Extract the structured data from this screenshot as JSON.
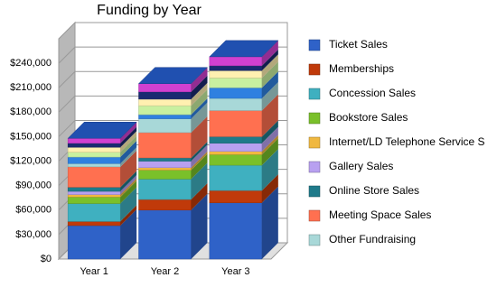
{
  "chart_data": {
    "type": "bar3d-stacked",
    "title": "Funding by Year",
    "categories": [
      "Year 1",
      "Year 2",
      "Year 3"
    ],
    "ylim": [
      0,
      270000
    ],
    "yticks": [
      {
        "value": 0,
        "label": "$0"
      },
      {
        "value": 30000,
        "label": "$30,000"
      },
      {
        "value": 60000,
        "label": "$60,000"
      },
      {
        "value": 90000,
        "label": "$90,000"
      },
      {
        "value": 120000,
        "label": "$120,000"
      },
      {
        "value": 150000,
        "label": "$150,000"
      },
      {
        "value": 180000,
        "label": "$180,000"
      },
      {
        "value": 210000,
        "label": "$210,000"
      },
      {
        "value": 240000,
        "label": "$240,000"
      }
    ],
    "grid": true,
    "series": [
      {
        "name": "Ticket Sales",
        "color": "#2f62c8",
        "values": [
          41000,
          60000,
          69000
        ]
      },
      {
        "name": "Memberships",
        "color": "#c03a0a",
        "values": [
          5000,
          13000,
          15000
        ]
      },
      {
        "name": "Concession Sales",
        "color": "#3fb0c0",
        "values": [
          22000,
          25000,
          31000
        ]
      },
      {
        "name": "Bookstore Sales",
        "color": "#7ac02a",
        "values": [
          8000,
          11000,
          13000
        ]
      },
      {
        "name": "Internet/LD Telephone Service S",
        "color": "#f0b840",
        "values": [
          3000,
          3000,
          4000
        ]
      },
      {
        "name": "Gallery Sales",
        "color": "#b8a0f0",
        "values": [
          4000,
          8000,
          10000
        ]
      },
      {
        "name": "Online Store Sales",
        "color": "#1f7a8a",
        "values": [
          5000,
          4000,
          8000
        ]
      },
      {
        "name": "Meeting Space Sales",
        "color": "#ff7050",
        "values": [
          25000,
          31000,
          32000
        ]
      },
      {
        "name": "Other Fundraising",
        "color": "#a8d8d8",
        "values": [
          4000,
          17000,
          15000
        ]
      },
      {
        "color": "#2f80e0",
        "values": [
          8000,
          5000,
          13000
        ]
      },
      {
        "color": "#c8f0a0",
        "values": [
          6000,
          11000,
          12000
        ]
      },
      {
        "color": "#fff0b0",
        "values": [
          6000,
          8000,
          9000
        ]
      },
      {
        "color": "#1a2a70",
        "values": [
          5000,
          9000,
          6000
        ]
      },
      {
        "color": "#d040d0",
        "values": [
          6000,
          10000,
          11000
        ]
      }
    ]
  }
}
